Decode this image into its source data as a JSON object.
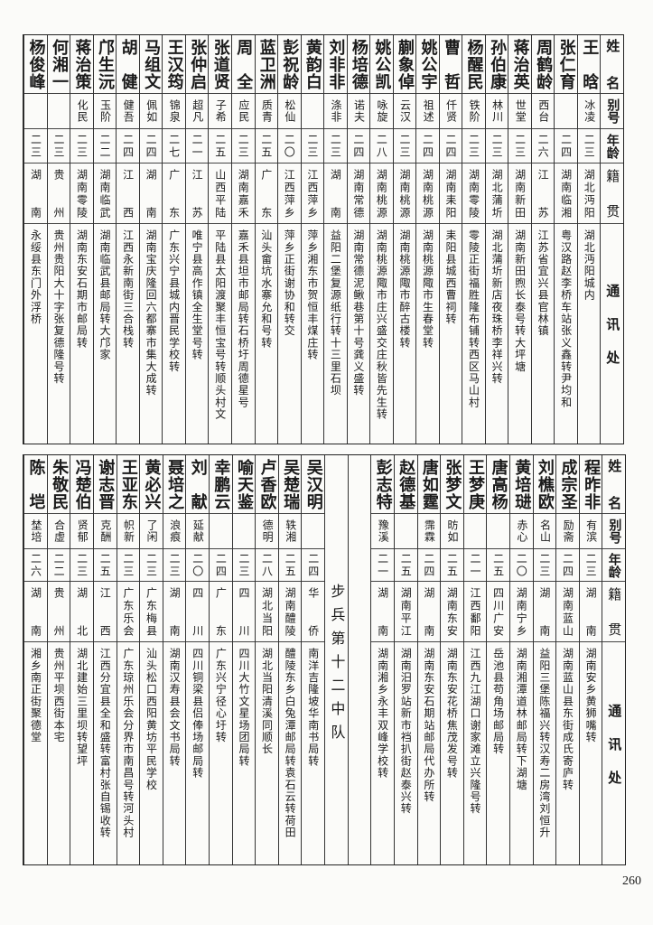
{
  "header": {
    "name": "姓名",
    "alias": "别号",
    "age": "年龄",
    "origin": "籍贯",
    "address": "通讯处"
  },
  "upper": {
    "rows": [
      {
        "name": "王晗",
        "alias": "冰凌",
        "age": "二三",
        "origin": "湖北沔阳",
        "address": "湖北沔阳城内"
      },
      {
        "name": "张仁育",
        "alias": "",
        "age": "二四",
        "origin": "湖南临湘",
        "address": "粤汉路赵李桥车站张义鑫转尹均和"
      },
      {
        "name": "周鹤龄",
        "alias": "西台",
        "age": "二六",
        "origin": "江苏",
        "address": "江苏省宜兴县官林镇"
      },
      {
        "name": "蒋治英",
        "alias": "世堂",
        "age": "二三",
        "origin": "湖南新田",
        "address": "湖南新田煦长泰号转大坪塘"
      },
      {
        "name": "孙伯康",
        "alias": "林川",
        "age": "二三",
        "origin": "湖北蒲圻",
        "address": "湖北蒲圻新店夜珠桥李祥兴转"
      },
      {
        "name": "杨醒民",
        "alias": "铁阶",
        "age": "二三",
        "origin": "湖南零陵",
        "address": "零陵正街福胜隆布铺转西区马山村"
      },
      {
        "name": "曹哲",
        "alias": "仟贤",
        "age": "二四",
        "origin": "湖南耒阳",
        "address": "耒阳县城西曹祠转"
      },
      {
        "name": "姚公宇",
        "alias": "祖述",
        "age": "二四",
        "origin": "湖南桃源",
        "address": "湖南桃源陬市生春堂转"
      },
      {
        "name": "蒯象倬",
        "alias": "云汉",
        "age": "二三",
        "origin": "湖南桃源",
        "address": "湖南桃源陬市醉古楼转"
      },
      {
        "name": "姚公凯",
        "alias": "咏旋",
        "age": "二八",
        "origin": "湖南桃源",
        "address": "湖南桃源陬市庄兴盛交庄秋皆先生转"
      },
      {
        "name": "杨培德",
        "alias": "诺夫",
        "age": "二四",
        "origin": "湖南常德",
        "address": "湖南常德泥鳅巷第十号龚义盛转"
      },
      {
        "name": "刘非非",
        "alias": "涤非",
        "age": "二三",
        "origin": "湖南",
        "address": "益阳二堡复源纸行转十三里石坝"
      },
      {
        "name": "黄韵白",
        "alias": "",
        "age": "二三",
        "origin": "江西萍乡",
        "address": "萍乡湘东市贺恒丰煤庄转"
      },
      {
        "name": "彭祝龄",
        "alias": "松仙",
        "age": "二〇",
        "origin": "江西萍乡",
        "address": "萍乡正街谢协和转交"
      },
      {
        "name": "蓝卫洲",
        "alias": "质青",
        "age": "二五",
        "origin": "广东",
        "address": "汕头畲坑水寨允和号转"
      },
      {
        "name": "周全",
        "alias": "应民",
        "age": "二三",
        "origin": "湖南嘉禾",
        "address": "嘉禾县坦市邮局转石桥圩周德星号"
      },
      {
        "name": "张道贤",
        "alias": "子希",
        "age": "二五",
        "origin": "山西平陆",
        "address": "平陆县太阳渡聚丰恒宝号转顺头村文"
      },
      {
        "name": "张仲启",
        "alias": "超凡",
        "age": "二一",
        "origin": "江苏",
        "address": "唯宁县高作镇全生堂号转"
      },
      {
        "name": "王汉筠",
        "alias": "锦泉",
        "age": "二七",
        "origin": "广东",
        "address": "广东兴宁县城内晋民学校转"
      },
      {
        "name": "马组文",
        "alias": "佩如",
        "age": "二四",
        "origin": "湖南",
        "address": "湖南宝庆隆回六都寨市集大成转"
      },
      {
        "name": "胡健",
        "alias": "健吾",
        "age": "二四",
        "origin": "江西",
        "address": "江西永新南街三合栈转"
      },
      {
        "name": "邝生沅",
        "alias": "玉阶",
        "age": "二二",
        "origin": "湖南临武",
        "address": "湖南临武县邮局转大邝家"
      },
      {
        "name": "蒋治策",
        "alias": "化民",
        "age": "二三",
        "origin": "湖南零陵",
        "address": "湖南东安石期市邮局转"
      },
      {
        "name": "何湘一",
        "alias": "",
        "age": "二三",
        "origin": "贵州",
        "address": "贵州贵阳大十字张复德隆号转"
      },
      {
        "name": "杨俊峰",
        "alias": "",
        "age": "二三",
        "origin": "湖南",
        "address": "永绥县东门外浮桥"
      }
    ]
  },
  "lower": {
    "rows": [
      {
        "name": "程昨非",
        "alias": "有滨",
        "age": "二三",
        "origin": "湖南",
        "address": "湖南安乡黄狮嘴转"
      },
      {
        "name": "成宗圣",
        "alias": "励斋",
        "age": "二四",
        "origin": "湖南蓝山",
        "address": "湖南蓝山县东街成氏寄庐转"
      },
      {
        "name": "刘樵欧",
        "alias": "名山",
        "age": "二三",
        "origin": "湖南",
        "address": "益阳三堡陈福兴转汉寿二房湾刘恒升"
      },
      {
        "name": "黄培琎",
        "alias": "赤心",
        "age": "二〇",
        "origin": "湖南宁乡",
        "address": "湖南湘潭道林邮局转下湖塘"
      },
      {
        "name": "唐高杨",
        "alias": "",
        "age": "二五",
        "origin": "四川广安",
        "address": "岳池县苟角场邮局转"
      },
      {
        "name": "王梦庚",
        "alias": "",
        "age": "二一",
        "origin": "江西鄱阳",
        "address": "江西九江湖口谢家滩立兴隆号转"
      },
      {
        "name": "张梦文",
        "alias": "昉如",
        "age": "二五",
        "origin": "湖南东安",
        "address": "湖南东安花桥焦茂发号转"
      },
      {
        "name": "唐如霆",
        "alias": "霈霖",
        "age": "二四",
        "origin": "湖南",
        "address": "湖南东安石期站邮局代办所转"
      },
      {
        "name": "赵德基",
        "alias": "",
        "age": "二五",
        "origin": "湖南平江",
        "address": "湖南汨罗站新市裆扒街赵泰兴转"
      },
      {
        "name": "彭志特",
        "alias": "豫溪",
        "age": "二一",
        "origin": "湖南",
        "address": "湖南湘乡永丰双峰学校转"
      },
      {
        "blank": true
      },
      {
        "section": "步兵第十二中队"
      },
      {
        "name": "吴汉明",
        "alias": "",
        "age": "二四",
        "origin": "华侨",
        "address": "南洋吉隆坡华南书局转"
      },
      {
        "name": "吴楚瑞",
        "alias": "轶湘",
        "age": "二五",
        "origin": "湖南醴陵",
        "address": "醴陵东乡白兔潭邮局转袁石云转荷田"
      },
      {
        "name": "卢香欧",
        "alias": "德明",
        "age": "二八",
        "origin": "湖北当阳",
        "address": "湖北当阳清溪同顺长"
      },
      {
        "name": "喻天鉴",
        "alias": "",
        "age": "二三",
        "origin": "四川",
        "address": "四川大竹文星场团局转"
      },
      {
        "name": "幸鹏云",
        "alias": "",
        "age": "二四",
        "origin": "广东",
        "address": "广东兴宁径心圩转"
      },
      {
        "name": "刘献",
        "alias": "延献",
        "age": "二〇",
        "origin": "四川",
        "address": "四川铜梁县侣俸场邮局转"
      },
      {
        "name": "聂培之",
        "alias": "浪痕",
        "age": "二三",
        "origin": "湖南",
        "address": "湖南汉寿县会文书局转"
      },
      {
        "name": "黄必兴",
        "alias": "了闲",
        "age": "二三",
        "origin": "广东梅县",
        "address": "汕头松口西阳黄坊平民学校"
      },
      {
        "name": "王亚东",
        "alias": "帜新",
        "age": "二三",
        "origin": "广东乐会",
        "address": "广东琼州乐会分界市南昌号转河头村"
      },
      {
        "name": "谢志晋",
        "alias": "克酬",
        "age": "二五",
        "origin": "江西",
        "address": "江西分宜县全和盛转富村张自锡收转"
      },
      {
        "name": "冯楚伯",
        "alias": "贤郁",
        "age": "二三",
        "origin": "湖北",
        "address": "湖北建始三里坝转望坪"
      },
      {
        "name": "朱敬民",
        "alias": "合虚",
        "age": "二二",
        "origin": "贵州",
        "address": "贵州平坝西街本宅"
      },
      {
        "name": "陈垲",
        "alias": "埜培",
        "age": "二六",
        "origin": "湖南",
        "address": "湘乡南正街聚德堂"
      }
    ]
  },
  "page_number": "260"
}
